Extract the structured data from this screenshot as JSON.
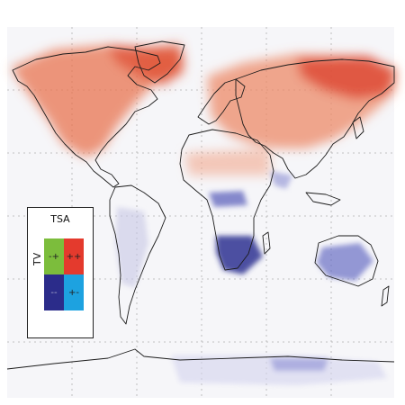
{
  "legend": {
    "title": "TSA",
    "ylabel": "TV",
    "cells": {
      "top_left": "-+",
      "top_right": "++",
      "bottom_left": "--",
      "bottom_right": "+-"
    },
    "colors": {
      "top_left": "#7cbd3c",
      "top_right": "#e43a2d",
      "bottom_left": "#2b2c8a",
      "bottom_right": "#1da2e0"
    }
  }
}
